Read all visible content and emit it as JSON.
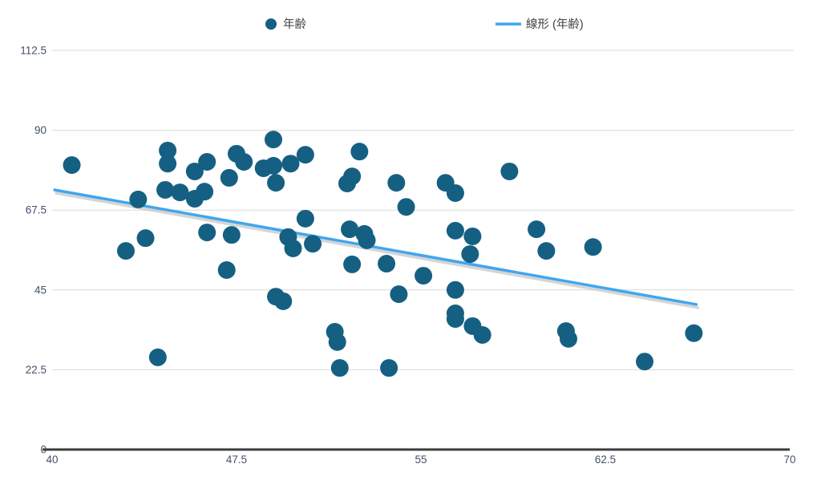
{
  "chart": {
    "legend": {
      "series1_label": "年齢",
      "series2_label": "線形 (年齢)"
    },
    "colors": {
      "point": "#156082",
      "trendline": "#41A5EE",
      "trendline_shadow": "#C8C8C8",
      "gridline": "#D9D9D9",
      "axis_line": "#3B3B3B",
      "tick_text": "#44506A",
      "legend_text": "#404040"
    }
  },
  "chart_data": {
    "type": "scatter",
    "title": "",
    "xlabel": "",
    "ylabel": "",
    "xlim": [
      40,
      70
    ],
    "ylim": [
      0,
      112.5
    ],
    "x_ticks": [
      40,
      47.5,
      55,
      62.5,
      70
    ],
    "y_ticks": [
      0,
      22.5,
      45,
      67.5,
      90,
      112.5
    ],
    "grid": "horizontal",
    "legend_position": "top",
    "series": [
      {
        "name": "年齢",
        "type": "scatter",
        "color": "#156082",
        "points": [
          [
            40.8,
            80.2
          ],
          [
            44.7,
            84.3
          ],
          [
            44.7,
            80.6
          ],
          [
            44.6,
            73.2
          ],
          [
            45.2,
            72.5
          ],
          [
            43.5,
            70.5
          ],
          [
            43.8,
            59.6
          ],
          [
            43.0,
            56.0
          ],
          [
            44.3,
            26.0
          ],
          [
            49.0,
            87.4
          ],
          [
            47.5,
            83.4
          ],
          [
            47.8,
            81.1
          ],
          [
            46.3,
            81.1
          ],
          [
            45.8,
            78.4
          ],
          [
            48.6,
            79.3
          ],
          [
            49.0,
            80.0
          ],
          [
            49.7,
            80.6
          ],
          [
            50.3,
            83.1
          ],
          [
            47.2,
            76.6
          ],
          [
            49.1,
            75.2
          ],
          [
            45.8,
            70.7
          ],
          [
            46.2,
            72.7
          ],
          [
            50.3,
            65.1
          ],
          [
            46.3,
            61.2
          ],
          [
            47.3,
            60.5
          ],
          [
            49.6,
            59.9
          ],
          [
            49.8,
            56.7
          ],
          [
            47.1,
            50.6
          ],
          [
            49.1,
            43.1
          ],
          [
            49.4,
            41.8
          ],
          [
            52.5,
            84.0
          ],
          [
            52.0,
            75.0
          ],
          [
            52.2,
            77.0
          ],
          [
            54.0,
            75.2
          ],
          [
            54.4,
            68.4
          ],
          [
            56.0,
            75.2
          ],
          [
            56.4,
            72.3
          ],
          [
            58.6,
            78.4
          ],
          [
            52.1,
            62.1
          ],
          [
            52.7,
            60.8
          ],
          [
            52.8,
            59.0
          ],
          [
            50.6,
            58.0
          ],
          [
            56.4,
            61.7
          ],
          [
            57.1,
            60.1
          ],
          [
            57.0,
            55.1
          ],
          [
            59.7,
            62.1
          ],
          [
            60.1,
            56.0
          ],
          [
            52.2,
            52.2
          ],
          [
            53.6,
            52.4
          ],
          [
            55.1,
            49.0
          ],
          [
            54.1,
            43.8
          ],
          [
            56.4,
            45.0
          ],
          [
            56.4,
            38.4
          ],
          [
            56.4,
            36.8
          ],
          [
            57.1,
            34.8
          ],
          [
            57.5,
            32.3
          ],
          [
            51.5,
            33.2
          ],
          [
            51.6,
            30.3
          ],
          [
            51.7,
            23.0
          ],
          [
            53.7,
            23.0
          ],
          [
            62.0,
            57.1
          ],
          [
            60.9,
            33.4
          ],
          [
            61.0,
            31.2
          ],
          [
            66.1,
            32.8
          ],
          [
            64.1,
            24.8
          ]
        ]
      },
      {
        "name": "線形 (年齢)",
        "type": "line",
        "color": "#41A5EE",
        "points": [
          [
            40.1,
            73.2
          ],
          [
            66.2,
            40.9
          ]
        ]
      }
    ]
  }
}
